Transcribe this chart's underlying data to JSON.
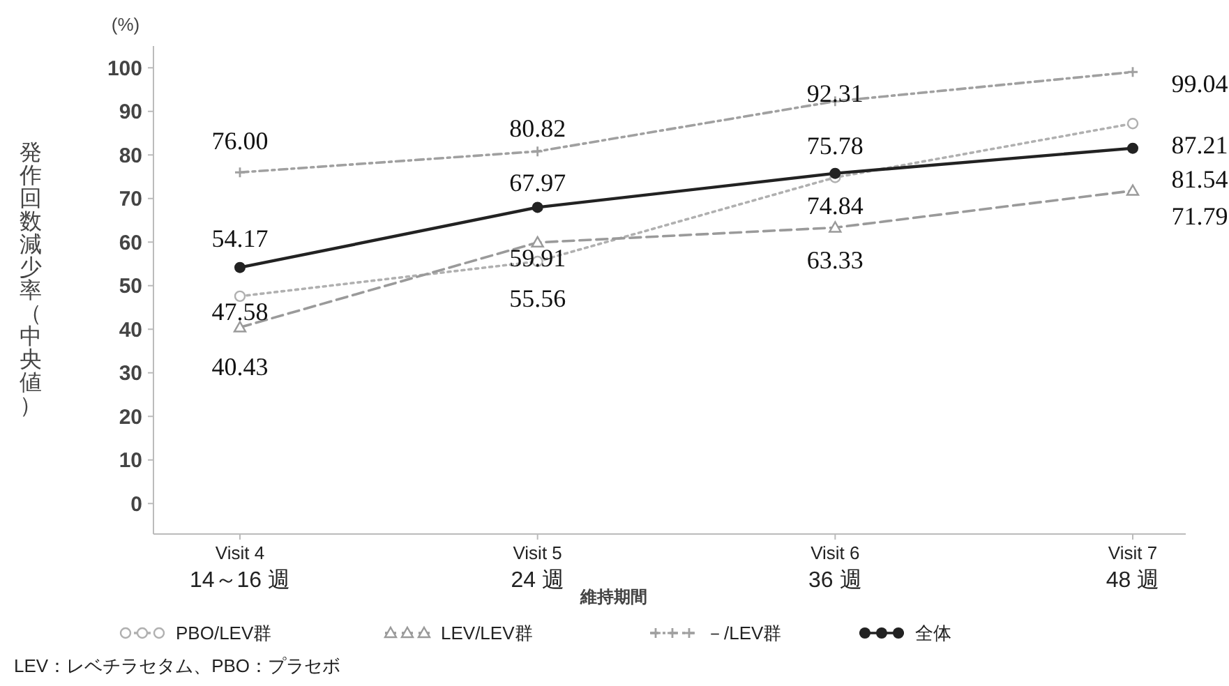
{
  "chart_data": {
    "type": "line",
    "ylabel": "発作回数減少率（中央値）",
    "xlabel": "維持期間",
    "categories": [
      "Visit 4\n14～16 週",
      "Visit 5\n24 週",
      "Visit 6\n36 週",
      "Visit 7\n48 週"
    ],
    "ylim": [
      -7,
      105
    ],
    "yticks": [
      0,
      10,
      20,
      30,
      40,
      50,
      60,
      70,
      80,
      90,
      100
    ],
    "grid": false,
    "legend": "bottom",
    "series": [
      {
        "name": "PBO/LEV群",
        "color": "#b0b0b0",
        "marker": "circle",
        "line_style": "dotted",
        "values": [
          47.58,
          55.56,
          74.84,
          87.21
        ],
        "value_labels": [
          "47.58",
          "55.56",
          "74.84",
          "87.21"
        ]
      },
      {
        "name": "LEV/LEV群",
        "color": "#9a9a9a",
        "marker": "triangle",
        "line_style": "dashed",
        "values": [
          40.43,
          59.91,
          63.33,
          71.79
        ],
        "value_labels": [
          "40.43",
          "59.91",
          "63.33",
          "71.79"
        ]
      },
      {
        "name": "－/LEV群",
        "color": "#a0a0a0",
        "marker": "cross",
        "line_style": "dashdot",
        "values": [
          76.0,
          80.82,
          92.31,
          99.04
        ],
        "value_labels": [
          "76.00",
          "80.82",
          "92.31",
          "99.04"
        ]
      },
      {
        "name": "全体",
        "color": "#222222",
        "marker": "filled-circle",
        "line_style": "solid",
        "values": [
          54.17,
          67.97,
          75.78,
          81.54
        ],
        "value_labels": [
          "54.17",
          "67.97",
          "75.78",
          "81.54"
        ]
      }
    ],
    "annotations": [
      "(%)",
      "LEV：レベチラセタム、PBO：プラセボ"
    ]
  }
}
